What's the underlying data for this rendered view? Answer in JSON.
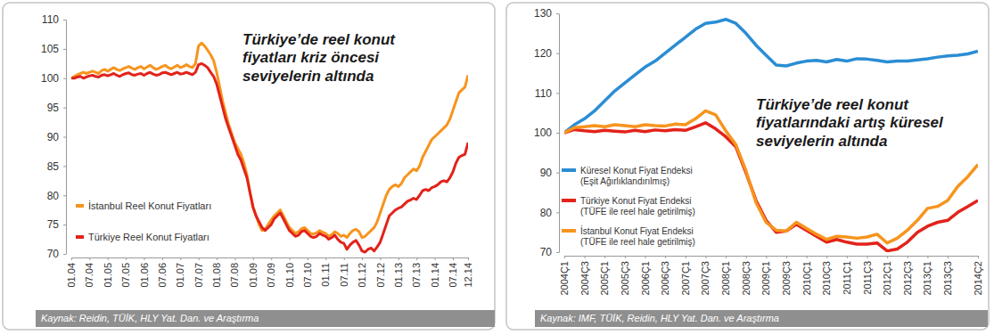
{
  "chart_data": [
    {
      "type": "line",
      "title": "Türkiye’de reel konut fiyatları kriz öncesi seviyelerin altında",
      "categories": [
        "01.04",
        null,
        null,
        null,
        null,
        null,
        "07.04",
        null,
        null,
        null,
        null,
        null,
        "01.05",
        null,
        null,
        null,
        null,
        null,
        "07.05",
        null,
        null,
        null,
        null,
        null,
        "01.06",
        null,
        null,
        null,
        null,
        null,
        "07.06",
        null,
        null,
        null,
        null,
        null,
        "01.07",
        null,
        null,
        null,
        null,
        null,
        "07.07",
        null,
        null,
        null,
        null,
        null,
        "01.08",
        null,
        null,
        null,
        null,
        null,
        "07.08",
        null,
        null,
        null,
        null,
        null,
        "01.09",
        null,
        null,
        null,
        null,
        null,
        "07.09",
        null,
        null,
        null,
        null,
        null,
        "01.10",
        null,
        null,
        null,
        null,
        null,
        "07.10",
        null,
        null,
        null,
        null,
        null,
        "01.11",
        null,
        null,
        null,
        null,
        null,
        "07.11",
        null,
        null,
        null,
        null,
        null,
        "01.12",
        null,
        null,
        null,
        null,
        null,
        "07.12",
        null,
        null,
        null,
        null,
        null,
        "01.13",
        null,
        null,
        null,
        null,
        null,
        "07.13",
        null,
        null,
        null,
        null,
        null,
        "01.14",
        null,
        null,
        null,
        null,
        null,
        "07.14",
        null,
        null,
        null,
        null,
        "12.14"
      ],
      "series": [
        {
          "name": "İstanbul Reel Konut Fiyatları",
          "color": "#f7941d",
          "values": [
            100,
            100.3,
            100.6,
            100.8,
            101,
            100.8,
            101,
            101.2,
            101,
            100.8,
            101.3,
            101.5,
            101.2,
            101.5,
            101.8,
            101.5,
            101.3,
            101.6,
            101.8,
            102,
            101.7,
            101.5,
            101.8,
            102,
            101.6,
            101.9,
            102.2,
            101.8,
            101.5,
            101.7,
            102,
            102.2,
            101.8,
            101.6,
            101.9,
            102.2,
            101.8,
            102,
            102.3,
            102,
            101.8,
            102.5,
            105.5,
            106,
            105.5,
            104.8,
            104,
            103,
            101,
            98.5,
            96,
            94,
            92,
            90.5,
            89,
            88,
            87,
            85.5,
            83.5,
            80.5,
            78,
            76.5,
            75,
            74,
            74.2,
            75,
            75.8,
            76.5,
            77,
            77.5,
            76.5,
            75.5,
            74.5,
            74,
            73.5,
            73.8,
            74.3,
            74.5,
            74,
            73.5,
            73.4,
            73.6,
            74,
            73.7,
            73.5,
            73,
            73.3,
            73.8,
            73.5,
            73,
            73.2,
            72.8,
            73.5,
            74,
            74.2,
            73.8,
            72.8,
            73,
            73.5,
            74,
            74.5,
            75.5,
            77,
            78.5,
            80,
            81,
            81.5,
            81.8,
            81.5,
            82,
            83,
            83.5,
            84,
            84.5,
            84.2,
            85,
            86.5,
            87.5,
            88.5,
            89.5,
            90,
            90.5,
            91,
            91.5,
            92,
            93,
            94.5,
            96,
            97.5,
            98,
            98.5,
            100.5
          ]
        },
        {
          "name": "Türkiye Reel Konut Fiyatları",
          "color": "#e2231a",
          "values": [
            100,
            100,
            100.2,
            100.3,
            100,
            100.2,
            100.4,
            100.5,
            100.3,
            100.2,
            100.5,
            100.6,
            100.4,
            100.6,
            100.8,
            100.5,
            100.3,
            100.6,
            100.8,
            100.9,
            100.6,
            100.5,
            100.7,
            100.8,
            100.5,
            100.8,
            101,
            100.7,
            100.5,
            100.6,
            100.9,
            101,
            100.8,
            100.6,
            100.8,
            101,
            100.7,
            100.8,
            101,
            100.8,
            100.6,
            101,
            102.3,
            102.5,
            102.2,
            101.8,
            101,
            100.3,
            99,
            97,
            95,
            93,
            91.5,
            90,
            88.5,
            87,
            86,
            84.5,
            83,
            80.5,
            78,
            76.5,
            75.5,
            74.5,
            74,
            74.5,
            75,
            76,
            76.5,
            77,
            76,
            75,
            74,
            73.5,
            73,
            73.2,
            73.8,
            74,
            73.5,
            73,
            72.8,
            73,
            73.5,
            73.2,
            73,
            72.5,
            72.8,
            73.2,
            72.5,
            72,
            71.8,
            70.8,
            71.5,
            72,
            72.3,
            71.5,
            70.5,
            70.3,
            70.8,
            71,
            70.5,
            71.2,
            72,
            73.5,
            75,
            76.5,
            77,
            77.5,
            77.8,
            78,
            78.5,
            79,
            79.2,
            79.5,
            79.3,
            80,
            80.8,
            81,
            80.8,
            81.3,
            81.5,
            81.8,
            82.3,
            82.5,
            82.3,
            83,
            84,
            85.5,
            86.5,
            86.8,
            87,
            89
          ]
        }
      ],
      "ylim": [
        70,
        110
      ],
      "yticks": [
        70,
        75,
        80,
        85,
        90,
        95,
        100,
        105,
        110
      ],
      "grid": false,
      "legend": "lower left",
      "source": "Kaynak: Reidin, TÜİK, HLY Yat. Dan. ve Araştırma"
    },
    {
      "type": "line",
      "title": "Türkiye’de reel konut fiyatlarındaki artış küresel seviyelerin altında",
      "categories": [
        "2004Ç1",
        null,
        "2004Ç3",
        null,
        "2005Ç1",
        null,
        "2005Ç3",
        null,
        "2006Ç1",
        null,
        "2006Ç3",
        null,
        "2007Ç1",
        null,
        "2007Ç3",
        null,
        "2008Ç1",
        null,
        "2008Ç3",
        null,
        "2009Ç1",
        null,
        "2009Ç3",
        null,
        "2010Ç1",
        null,
        "2010Ç3",
        null,
        "2011Ç1",
        null,
        "2011Ç3",
        null,
        "2012Ç1",
        null,
        "2012Ç3",
        null,
        "2013Ç1",
        null,
        "2013Ç3",
        null,
        null,
        "2014Ç2"
      ],
      "series": [
        {
          "name": "Küresel Konut Fiyat Endeksi (Eşit Ağırlıklandırılmış)",
          "color": "#2a8dd4",
          "values": [
            100,
            102,
            103.5,
            105.5,
            108,
            110.5,
            112.5,
            114.5,
            116.5,
            118,
            120,
            122,
            124,
            126,
            127.5,
            127.8,
            128.5,
            127.5,
            125,
            122,
            119.5,
            117,
            116.8,
            117.5,
            118,
            118.2,
            117.8,
            118.4,
            118,
            118.6,
            118.5,
            118.2,
            117.8,
            118,
            118,
            118.3,
            118.6,
            119,
            119.3,
            119.5,
            119.8,
            120.5
          ]
        },
        {
          "name": "Türkiye Konut Fiyat Endeksi (TÜFE ile reel hale getirilmiş)",
          "color": "#e2231a",
          "values": [
            100,
            100.8,
            100.5,
            100.3,
            100.6,
            100.4,
            100.2,
            100.6,
            100.3,
            100.7,
            100.5,
            100.8,
            100.6,
            101.5,
            102.5,
            101,
            99,
            96.5,
            90,
            83,
            78,
            75,
            75.3,
            77,
            75.5,
            74,
            72.5,
            73.2,
            72.5,
            72,
            72,
            72.3,
            70.3,
            70.8,
            72.5,
            75,
            76.5,
            77.5,
            78,
            80,
            81.5,
            83
          ]
        },
        {
          "name": "İstanbul Konut Fiyat Endeksi (TÜFE ile reel hale getirilmiş)",
          "color": "#f7941d",
          "values": [
            100,
            101.3,
            101.5,
            101.8,
            101.5,
            102,
            101.8,
            101.5,
            102,
            101.8,
            101.7,
            102.2,
            102,
            103.5,
            105.5,
            104.5,
            100.5,
            97,
            90.5,
            82.5,
            77.5,
            75.5,
            75.3,
            77.5,
            76,
            74.5,
            73.2,
            74,
            73.8,
            73.5,
            73.8,
            74.5,
            72.3,
            73.5,
            75.5,
            78,
            81,
            81.5,
            83,
            86.5,
            89,
            92
          ]
        }
      ],
      "ylim": [
        70,
        130
      ],
      "yticks": [
        70,
        80,
        90,
        100,
        110,
        120,
        130
      ],
      "grid": false,
      "legend": "lower left",
      "source": "Kaynak: IMF, TÜİK, Reidin, HLY Yat. Dan. ve Araştırma"
    }
  ]
}
